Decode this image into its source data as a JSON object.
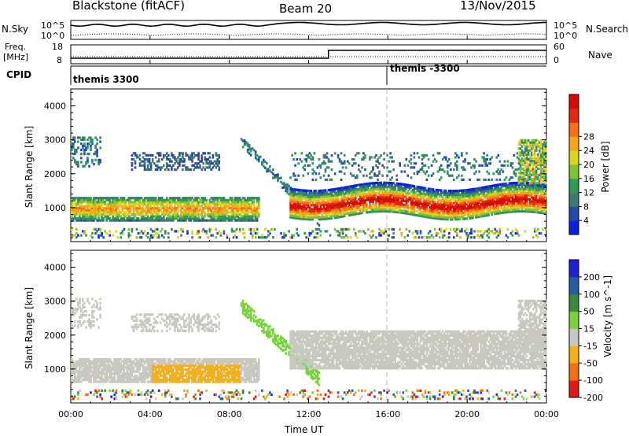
{
  "header": {
    "station": "Blackstone (fitACF)",
    "beam": "Beam 20",
    "date": "13/Nov/2015"
  },
  "noise_panel": {
    "left_label": "N.Sky",
    "left_top": "10^5",
    "left_bottom": "10^0",
    "right_top": "10^5",
    "right_bottom": "10^0",
    "right_label": "N.Search"
  },
  "freq_panel": {
    "left_label_line1": "Freq.",
    "left_label_line2": "[MHz]",
    "left_top": "18",
    "left_bottom": "8",
    "right_top": "60",
    "right_bottom": "0",
    "right_label": "Nave"
  },
  "cpid": {
    "label": "CPID",
    "mode1": "themis 3300",
    "mode2": "themis -3300"
  },
  "chart_data": [
    {
      "type": "heatmap",
      "quantity": "Power",
      "ylabel": "Slant Range [km]",
      "yticks": [
        "1000",
        "2000",
        "3000",
        "4000"
      ],
      "colorbar_label": "Power [dB]",
      "colorbar_ticks": [
        "4",
        "8",
        "12",
        "16",
        "20",
        "24",
        "28"
      ],
      "colorbar_colors": [
        "#0a1fe0",
        "#244aa8",
        "#3e7a74",
        "#2f9a55",
        "#7fc23a",
        "#d9d521",
        "#f4a51b",
        "#f57016",
        "#e22a10",
        "#d40c0c"
      ]
    },
    {
      "type": "heatmap",
      "quantity": "Velocity",
      "ylabel": "Slant Range [km]",
      "yticks": [
        "1000",
        "2000",
        "3000",
        "4000"
      ],
      "colorbar_label": "Velocity [m s^-1]",
      "colorbar_ticks": [
        "200",
        "100",
        "50",
        "15",
        "-15",
        "-50",
        "-100",
        "-200"
      ],
      "colorbar_colors": [
        "#2020d0",
        "#2a5aa0",
        "#3a8a3c",
        "#7ad040",
        "#c8c8c0",
        "#f0b020",
        "#f07018",
        "#e01818"
      ]
    }
  ],
  "x_axis": {
    "label": "Time UT",
    "ticks": [
      "00:00",
      "04:00",
      "08:00",
      "12:00",
      "16:00",
      "20:00",
      "00:00"
    ]
  }
}
